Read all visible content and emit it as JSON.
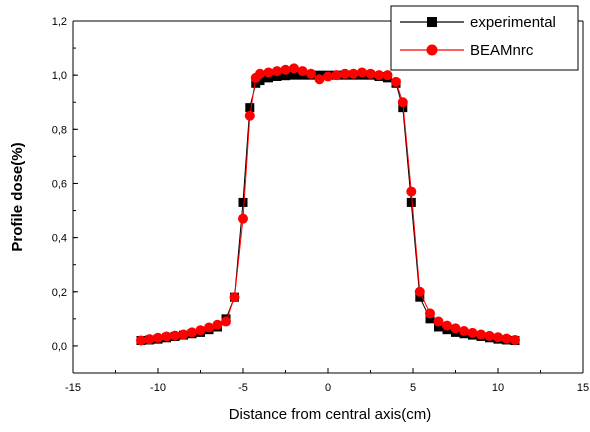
{
  "chart_data": {
    "type": "line",
    "xlabel": "Distance from central axis(cm)",
    "ylabel": "Profile dose(%)",
    "xlim": [
      -15,
      15
    ],
    "ylim": [
      -0.1,
      1.2
    ],
    "xticks": [
      -15,
      -10,
      -5,
      0,
      5,
      10,
      15
    ],
    "xtick_labels": [
      "-15",
      "-10",
      "-5",
      "0",
      "5",
      "10",
      "15"
    ],
    "yticks": [
      0.0,
      0.2,
      0.4,
      0.6,
      0.8,
      1.0,
      1.2
    ],
    "ytick_labels": [
      "0,0",
      "0,2",
      "0,4",
      "0,6",
      "0,8",
      "1,0",
      "1,2"
    ],
    "grid": false,
    "legend_position": "top-right",
    "series": [
      {
        "name": "experimental",
        "color": "#000000",
        "marker": "square",
        "points": [
          [
            -11,
            0.02
          ],
          [
            -10.5,
            0.022
          ],
          [
            -10,
            0.025
          ],
          [
            -9.5,
            0.03
          ],
          [
            -9,
            0.035
          ],
          [
            -8.5,
            0.04
          ],
          [
            -8,
            0.045
          ],
          [
            -7.5,
            0.05
          ],
          [
            -7,
            0.06
          ],
          [
            -6.5,
            0.07
          ],
          [
            -6,
            0.1
          ],
          [
            -5.5,
            0.18
          ],
          [
            -5,
            0.53
          ],
          [
            -4.6,
            0.88
          ],
          [
            -4.25,
            0.97
          ],
          [
            -4,
            0.98
          ],
          [
            -3.5,
            0.99
          ],
          [
            -3,
            0.995
          ],
          [
            -2.5,
            0.998
          ],
          [
            -2,
            1.0
          ],
          [
            -1.5,
            1.0
          ],
          [
            -1,
            1.0
          ],
          [
            -0.5,
            1.0
          ],
          [
            0,
            1.0
          ],
          [
            0.5,
            1.0
          ],
          [
            1,
            1.0
          ],
          [
            1.5,
            1.0
          ],
          [
            2,
            1.0
          ],
          [
            2.5,
            1.0
          ],
          [
            3,
            0.995
          ],
          [
            3.5,
            0.99
          ],
          [
            4,
            0.97
          ],
          [
            4.4,
            0.88
          ],
          [
            4.9,
            0.53
          ],
          [
            5.4,
            0.18
          ],
          [
            6,
            0.1
          ],
          [
            6.5,
            0.07
          ],
          [
            7,
            0.06
          ],
          [
            7.5,
            0.05
          ],
          [
            8,
            0.045
          ],
          [
            8.5,
            0.04
          ],
          [
            9,
            0.035
          ],
          [
            9.5,
            0.03
          ],
          [
            10,
            0.025
          ],
          [
            10.5,
            0.022
          ],
          [
            11,
            0.02
          ]
        ]
      },
      {
        "name": "BEAMnrc",
        "color": "#ff0000",
        "marker": "circle",
        "points": [
          [
            -11,
            0.02
          ],
          [
            -10.5,
            0.025
          ],
          [
            -10,
            0.03
          ],
          [
            -9.5,
            0.035
          ],
          [
            -9,
            0.038
          ],
          [
            -8.5,
            0.042
          ],
          [
            -8,
            0.05
          ],
          [
            -7.5,
            0.058
          ],
          [
            -7,
            0.068
          ],
          [
            -6.5,
            0.078
          ],
          [
            -6,
            0.09
          ],
          [
            -5.5,
            0.18
          ],
          [
            -5,
            0.47
          ],
          [
            -4.6,
            0.85
          ],
          [
            -4.25,
            0.99
          ],
          [
            -4,
            1.005
          ],
          [
            -3.5,
            1.01
          ],
          [
            -3,
            1.015
          ],
          [
            -2.5,
            1.02
          ],
          [
            -2,
            1.025
          ],
          [
            -1.5,
            1.015
          ],
          [
            -1,
            1.005
          ],
          [
            -0.5,
            0.985
          ],
          [
            0,
            0.995
          ],
          [
            0.5,
            1.0
          ],
          [
            1,
            1.005
          ],
          [
            1.5,
            1.005
          ],
          [
            2,
            1.01
          ],
          [
            2.5,
            1.005
          ],
          [
            3,
            1.0
          ],
          [
            3.5,
            1.0
          ],
          [
            4,
            0.975
          ],
          [
            4.4,
            0.9
          ],
          [
            4.9,
            0.57
          ],
          [
            5.4,
            0.2
          ],
          [
            6,
            0.12
          ],
          [
            6.5,
            0.09
          ],
          [
            7,
            0.075
          ],
          [
            7.5,
            0.065
          ],
          [
            8,
            0.055
          ],
          [
            8.5,
            0.048
          ],
          [
            9,
            0.042
          ],
          [
            9.5,
            0.037
          ],
          [
            10,
            0.032
          ],
          [
            10.5,
            0.027
          ],
          [
            11,
            0.022
          ]
        ]
      }
    ]
  }
}
